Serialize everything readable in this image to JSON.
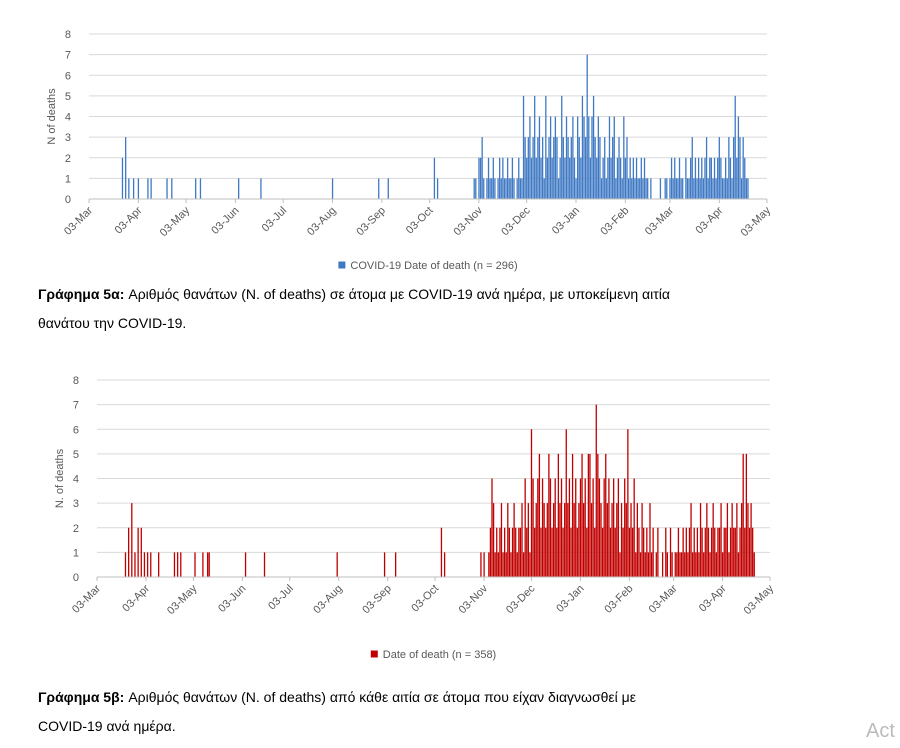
{
  "chart_data": [
    {
      "type": "bar",
      "ylabel": "N of deaths",
      "ylim": [
        0,
        8
      ],
      "yticks": [
        0,
        1,
        2,
        3,
        4,
        5,
        6,
        7,
        8
      ],
      "grid": true,
      "xlim": [
        0,
        426
      ],
      "xticks": [
        {
          "value": 0,
          "label": "03-Mar"
        },
        {
          "value": 31,
          "label": "03-Apr"
        },
        {
          "value": 61,
          "label": "03-May"
        },
        {
          "value": 92,
          "label": "03-Jun"
        },
        {
          "value": 122,
          "label": "03-Jul"
        },
        {
          "value": 153,
          "label": "03-Aug"
        },
        {
          "value": 184,
          "label": "03-Sep"
        },
        {
          "value": 214,
          "label": "03-Oct"
        },
        {
          "value": 245,
          "label": "03-Nov"
        },
        {
          "value": 275,
          "label": "03-Dec"
        },
        {
          "value": 306,
          "label": "03-Jan"
        },
        {
          "value": 337,
          "label": "03-Feb"
        },
        {
          "value": 365,
          "label": "03-Mar"
        },
        {
          "value": 396,
          "label": "03-Apr"
        },
        {
          "value": 426,
          "label": "03-May"
        }
      ],
      "legend": "bottom",
      "series": [
        {
          "name": "COVID-19 Date of death (n = 296)",
          "color": "#3f79c4",
          "x": [
            21,
            23,
            25,
            28,
            31,
            37,
            39,
            49,
            52,
            67,
            70,
            94,
            108,
            153,
            182,
            188,
            217,
            219,
            242,
            243,
            244,
            245,
            246,
            247,
            248,
            249,
            250,
            251,
            252,
            253,
            254,
            255,
            256,
            257,
            258,
            259,
            260,
            261,
            262,
            263,
            264,
            265,
            266,
            267,
            268,
            269,
            270,
            271,
            272,
            273,
            274,
            275,
            276,
            277,
            278,
            279,
            280,
            281,
            282,
            283,
            284,
            285,
            286,
            287,
            288,
            289,
            290,
            291,
            292,
            293,
            294,
            295,
            296,
            297,
            298,
            299,
            300,
            301,
            302,
            303,
            304,
            305,
            306,
            307,
            308,
            309,
            310,
            311,
            312,
            313,
            314,
            315,
            316,
            317,
            318,
            319,
            320,
            321,
            322,
            323,
            324,
            325,
            326,
            327,
            328,
            329,
            330,
            331,
            332,
            333,
            334,
            335,
            336,
            337,
            338,
            339,
            340,
            341,
            342,
            343,
            344,
            345,
            346,
            347,
            348,
            349,
            350,
            351,
            352,
            353,
            354,
            355,
            356,
            357,
            358,
            359,
            360,
            361,
            362,
            363,
            364,
            365,
            366,
            367,
            368,
            369,
            370,
            371,
            372,
            373,
            374,
            375,
            376,
            377,
            378,
            379,
            380,
            381,
            382,
            383,
            384,
            385,
            386,
            387,
            388,
            389,
            390,
            391,
            392,
            393,
            394,
            395,
            396,
            397,
            398,
            399,
            400,
            401,
            402,
            403,
            404,
            405,
            406,
            407,
            408,
            409,
            410,
            411,
            412,
            413,
            414
          ],
          "values": [
            2,
            3,
            1,
            1,
            1,
            1,
            1,
            1,
            1,
            1,
            1,
            1,
            1,
            1,
            1,
            1,
            2,
            1,
            1,
            1,
            0,
            2,
            2,
            3,
            1,
            0,
            1,
            2,
            1,
            1,
            2,
            1,
            0,
            1,
            2,
            1,
            2,
            1,
            1,
            2,
            1,
            1,
            2,
            1,
            0,
            1,
            2,
            1,
            1,
            5,
            3,
            2,
            3,
            4,
            2,
            3,
            5,
            2,
            3,
            4,
            2,
            3,
            1,
            5,
            2,
            3,
            4,
            2,
            3,
            4,
            3,
            1,
            2,
            5,
            3,
            2,
            4,
            3,
            2,
            3,
            4,
            2,
            1,
            4,
            3,
            2,
            5,
            4,
            3,
            7,
            4,
            2,
            4,
            5,
            3,
            2,
            4,
            3,
            1,
            2,
            3,
            1,
            2,
            4,
            2,
            3,
            4,
            1,
            2,
            3,
            2,
            1,
            4,
            2,
            3,
            1,
            2,
            1,
            2,
            1,
            2,
            1,
            1,
            2,
            1,
            2,
            1,
            1,
            0,
            1,
            0,
            0,
            0,
            0,
            0,
            1,
            0,
            0,
            1,
            1,
            0,
            1,
            2,
            1,
            2,
            1,
            1,
            2,
            1,
            1,
            0,
            2,
            1,
            1,
            2,
            3,
            1,
            2,
            1,
            2,
            1,
            2,
            1,
            2,
            3,
            1,
            2,
            2,
            1,
            2,
            1,
            2,
            3,
            2,
            1,
            1,
            2,
            1,
            3,
            2,
            1,
            3,
            5,
            2,
            4,
            3,
            1,
            3,
            2,
            1,
            1
          ]
        }
      ],
      "caption": {
        "label": "Γράφημα 5α:",
        "lines": [
          "Αριθμός θανάτων (N. of deaths) σε άτομα με COVID-19 ανά ημέρα, με υποκείμενη αιτία",
          "θανάτου την COVID-19."
        ]
      }
    },
    {
      "type": "bar",
      "ylabel": "N. of deaths",
      "ylim": [
        0,
        8
      ],
      "yticks": [
        0,
        1,
        2,
        3,
        4,
        5,
        6,
        7,
        8
      ],
      "grid": true,
      "xlim": [
        0,
        426
      ],
      "xticks": [
        {
          "value": 0,
          "label": "03-Mar"
        },
        {
          "value": 31,
          "label": "03-Apr"
        },
        {
          "value": 61,
          "label": "03-May"
        },
        {
          "value": 92,
          "label": "03-Jun"
        },
        {
          "value": 122,
          "label": "03-Jul"
        },
        {
          "value": 153,
          "label": "03-Aug"
        },
        {
          "value": 184,
          "label": "03-Sep"
        },
        {
          "value": 214,
          "label": "03-Oct"
        },
        {
          "value": 245,
          "label": "03-Nov"
        },
        {
          "value": 275,
          "label": "03-Dec"
        },
        {
          "value": 306,
          "label": "03-Jan"
        },
        {
          "value": 337,
          "label": "03-Feb"
        },
        {
          "value": 365,
          "label": "03-Mar"
        },
        {
          "value": 396,
          "label": "03-Apr"
        },
        {
          "value": 426,
          "label": "03-May"
        }
      ],
      "legend": "bottom",
      "series": [
        {
          "name": "Date of death (n = 358)",
          "color": "#c00000",
          "x": [
            18,
            20,
            22,
            24,
            26,
            28,
            30,
            32,
            34,
            39,
            49,
            51,
            53,
            62,
            67,
            70,
            71,
            94,
            106,
            152,
            182,
            189,
            218,
            220,
            243,
            245,
            248,
            249,
            250,
            251,
            252,
            253,
            254,
            255,
            256,
            257,
            258,
            259,
            260,
            261,
            262,
            263,
            264,
            265,
            266,
            267,
            268,
            269,
            270,
            271,
            272,
            273,
            274,
            275,
            276,
            277,
            278,
            279,
            280,
            281,
            282,
            283,
            284,
            285,
            286,
            287,
            288,
            289,
            290,
            291,
            292,
            293,
            294,
            295,
            296,
            297,
            298,
            299,
            300,
            301,
            302,
            303,
            304,
            305,
            306,
            307,
            308,
            309,
            310,
            311,
            312,
            313,
            314,
            315,
            316,
            317,
            318,
            319,
            320,
            321,
            322,
            323,
            324,
            325,
            326,
            327,
            328,
            329,
            330,
            331,
            332,
            333,
            334,
            335,
            336,
            337,
            338,
            339,
            340,
            341,
            342,
            343,
            344,
            345,
            346,
            347,
            348,
            349,
            350,
            351,
            352,
            353,
            354,
            355,
            356,
            357,
            358,
            359,
            360,
            361,
            362,
            363,
            364,
            365,
            366,
            367,
            368,
            369,
            370,
            371,
            372,
            373,
            374,
            375,
            376,
            377,
            378,
            379,
            380,
            381,
            382,
            383,
            384,
            385,
            386,
            387,
            388,
            389,
            390,
            391,
            392,
            393,
            394,
            395,
            396,
            397,
            398,
            399,
            400,
            401,
            402,
            403,
            404,
            405,
            406,
            407,
            408,
            409,
            410,
            411,
            412,
            413,
            414,
            415,
            416
          ],
          "values": [
            1,
            2,
            3,
            1,
            2,
            2,
            1,
            1,
            1,
            1,
            1,
            1,
            1,
            1,
            1,
            1,
            1,
            1,
            1,
            1,
            1,
            1,
            2,
            1,
            1,
            1,
            1,
            2,
            4,
            3,
            1,
            2,
            1,
            2,
            3,
            1,
            2,
            1,
            3,
            2,
            1,
            2,
            3,
            2,
            1,
            2,
            2,
            3,
            1,
            4,
            2,
            3,
            1,
            6,
            4,
            2,
            3,
            4,
            5,
            2,
            4,
            3,
            2,
            3,
            5,
            4,
            2,
            3,
            4,
            2,
            5,
            3,
            4,
            2,
            3,
            6,
            3,
            4,
            2,
            5,
            3,
            4,
            2,
            3,
            4,
            5,
            3,
            4,
            2,
            5,
            5,
            3,
            4,
            2,
            7,
            5,
            4,
            3,
            2,
            4,
            5,
            3,
            4,
            2,
            3,
            4,
            2,
            3,
            4,
            1,
            3,
            2,
            4,
            3,
            6,
            2,
            3,
            2,
            4,
            1,
            3,
            2,
            1,
            3,
            2,
            1,
            2,
            1,
            3,
            1,
            2,
            0,
            1,
            2,
            0,
            0,
            1,
            0,
            2,
            1,
            0,
            2,
            1,
            0,
            1,
            1,
            2,
            1,
            1,
            2,
            1,
            2,
            1,
            2,
            3,
            1,
            2,
            1,
            2,
            1,
            3,
            2,
            1,
            2,
            3,
            2,
            1,
            2,
            3,
            2,
            1,
            2,
            2,
            3,
            1,
            2,
            2,
            3,
            1,
            2,
            3,
            2,
            2,
            3,
            1,
            2,
            3,
            5,
            2,
            5,
            3,
            2,
            3,
            2,
            1
          ]
        }
      ],
      "caption": {
        "label": "Γράφημα 5β:",
        "lines": [
          "Αριθμός θανάτων (N. of deaths) από κάθε αιτία σε άτομα που είχαν διαγνωσθεί με",
          "COVID-19 ανά ημέρα."
        ]
      }
    }
  ],
  "watermark": "Act"
}
